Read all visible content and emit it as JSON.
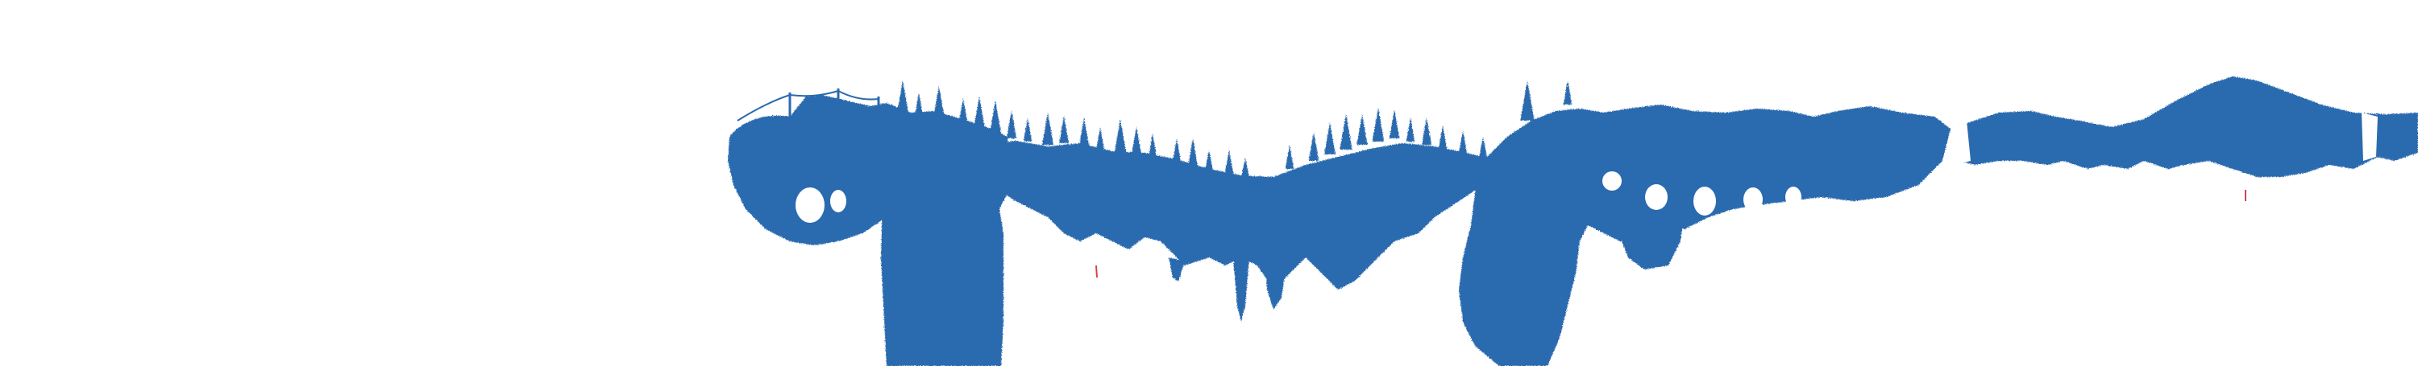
{
  "scene": {
    "background": "#ffffff",
    "ink_color": "#2b6aaf",
    "accent_color": "#d0455a"
  }
}
